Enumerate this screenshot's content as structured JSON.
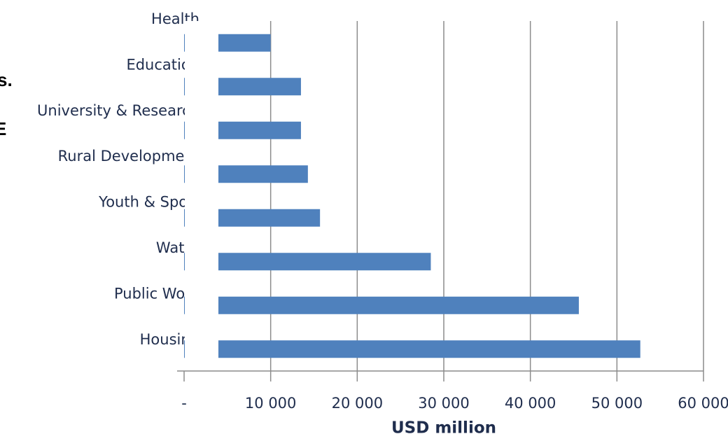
{
  "chart_data": {
    "type": "barh",
    "categories": [
      "Health",
      "Education",
      "University & Research",
      "Rural Development",
      "Youth & Sport",
      "Water",
      "Public Work",
      "Housing"
    ],
    "values": [
      10000,
      13500,
      13500,
      14300,
      15700,
      28500,
      45600,
      52700
    ],
    "color": "#4f81bd",
    "x_label": "USD million",
    "xlim": [
      0,
      60000
    ],
    "xticks": [
      {
        "value": 0,
        "label": "-"
      },
      {
        "value": 10000,
        "label": "10 000"
      },
      {
        "value": 20000,
        "label": "20 000"
      },
      {
        "value": 30000,
        "label": "30 000"
      },
      {
        "value": 40000,
        "label": "40 000"
      },
      {
        "value": 50000,
        "label": "50 000"
      },
      {
        "value": 60000,
        "label": "60 000"
      }
    ],
    "grid": true
  },
  "background_text": [
    "s.",
    "E"
  ]
}
